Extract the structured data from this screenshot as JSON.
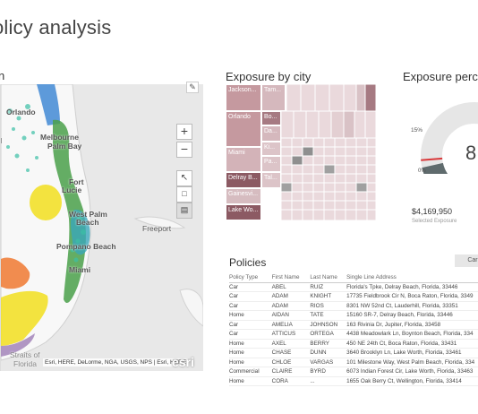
{
  "page": {
    "title": "olicy analysis"
  },
  "map": {
    "title": "n",
    "labels": {
      "orlando": "Orlando",
      "melbourne": "Melbourne",
      "palm_bay": "Palm Bay",
      "fort": "Fort",
      "lucie": "Lucie",
      "west_palm": "West Palm",
      "beach1": "Beach",
      "pompano": "Pompano Beach",
      "miami": "Miami",
      "freeport": "Freeport",
      "d": "d",
      "straits": "Straits of",
      "florida": "Florida"
    },
    "zoom_in": "+",
    "zoom_out": "−",
    "attribution": "Esri, HERE, DeLorme, NGA, USGS, NPS | Esri, HERE",
    "logo": "esri"
  },
  "treemap": {
    "title": "Exposure by city",
    "cells": [
      "Jackson...",
      "Tam...",
      "Orlando",
      "Bo...",
      "Da...",
      "Ki...",
      "Miami",
      "Pa...",
      "Delray B...",
      "Tal...",
      "Gainesvi...",
      "Lake Wo..."
    ]
  },
  "gauge": {
    "title": "Exposure percen",
    "target_label": "15%",
    "min_label": "0%",
    "value_text": "8",
    "value": "$4,169,950",
    "value_caption": "Selected Exposure",
    "fill_fraction": 0.12,
    "target_fraction": 0.15
  },
  "filter_button": "Car",
  "policies": {
    "title": "Policies",
    "headers": [
      "Policy Type",
      "First Name",
      "Last Name",
      "Single Line Address"
    ],
    "rows": [
      [
        "Car",
        "ABEL",
        "RUIZ",
        "Florida's Tpke, Delray Beach, Florida, 33446"
      ],
      [
        "Car",
        "ADAM",
        "KNIGHT",
        "17735 Fieldbrook Cir N, Boca Raton, Florida, 3349"
      ],
      [
        "Car",
        "ADAM",
        "RIOS",
        "8301 NW 52nd Ct, Lauderhill, Florida, 33351"
      ],
      [
        "Home",
        "AIDAN",
        "TATE",
        "15160 SR-7, Delray Beach, Florida, 33446"
      ],
      [
        "Car",
        "AMELIA",
        "JOHNSON",
        "163 Rivinia Dr, Jupiter, Florida, 33458"
      ],
      [
        "Car",
        "ATTICUS",
        "ORTEGA",
        "4438 Meadowlark Ln, Boynton Beach, Florida, 334"
      ],
      [
        "Home",
        "AXEL",
        "BERRY",
        "450 NE 24th Ct, Boca Raton, Florida, 33431"
      ],
      [
        "Home",
        "CHASE",
        "DUNN",
        "3640 Brooklyn Ln, Lake Worth, Florida, 33461"
      ],
      [
        "Home",
        "CHLOE",
        "VARGAS",
        "101 Milestone Way, West Palm Beach, Florida, 334"
      ],
      [
        "Commercial",
        "CLAIRE",
        "BYRD",
        "6073 Indian Forest Cir, Lake Worth, Florida, 33463"
      ],
      [
        "Home",
        "CORA",
        "...",
        "1655 Oak Berry Ct, Wellington, Florida, 33414"
      ]
    ]
  },
  "colors": {
    "treemap_dark": "#8c5a63",
    "treemap_mid": "#b98a92",
    "treemap_light": "#d9c2c6",
    "gauge_fill": "#5f6b6d",
    "gauge_track": "#e6e6e6",
    "gauge_target": "#d9383a"
  }
}
